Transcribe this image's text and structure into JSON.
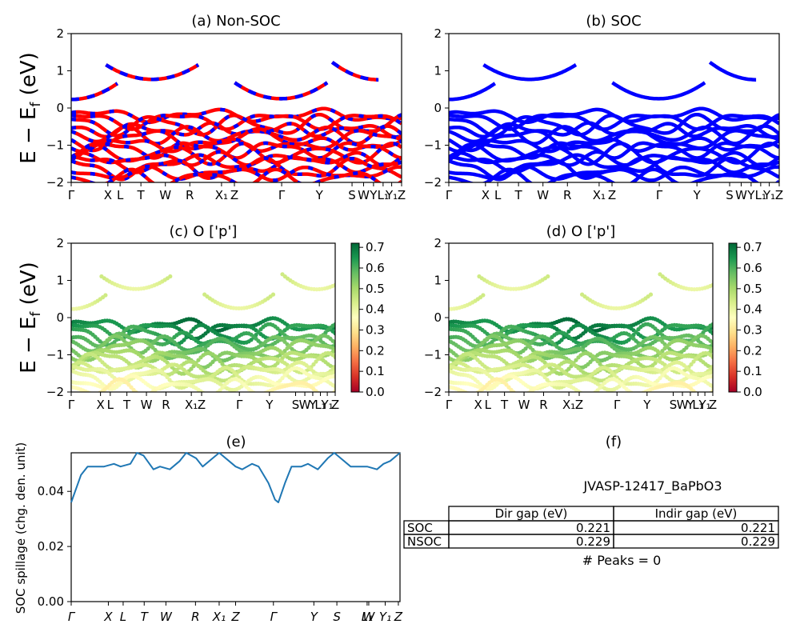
{
  "colors": {
    "nonsoc_a": "#ff0000",
    "nonsoc_b": "#0000ff",
    "soc": "#0000ff",
    "spillage": "#1f77b4",
    "colormap": [
      "#a50026",
      "#d73027",
      "#f46d43",
      "#fdae61",
      "#fee08b",
      "#ffffbf",
      "#d9ef8b",
      "#a6d96a",
      "#66bd63",
      "#1a9850",
      "#006837"
    ]
  },
  "panels": {
    "a": {
      "title": "(a) Non-SOC"
    },
    "b": {
      "title": "(b) SOC"
    },
    "c": {
      "title": "(c)  O ['p']"
    },
    "d": {
      "title": "(d) O ['p']"
    },
    "e": {
      "title": "(e)"
    },
    "f": {
      "title": "(f)"
    }
  },
  "band_ylabel": "E − E_f (eV)",
  "band_ylim": [
    -2,
    2
  ],
  "band_yticks": [
    "2",
    "1",
    "0",
    "−1",
    "−2"
  ],
  "colorbar_ticks": [
    "0.7",
    "0.6",
    "0.5",
    "0.4",
    "0.3",
    "0.2",
    "0.1",
    "0.0"
  ],
  "chart_data": [
    {
      "type": "line",
      "title": "(a) Non-SOC",
      "ylabel": "E − E_f (eV)",
      "ylim": [
        -2,
        2
      ],
      "xtick_labels": [
        "Γ",
        "X",
        "L",
        "T",
        "W",
        "R",
        "X1",
        "Z",
        "Γ",
        "Y",
        "S",
        "W",
        "Y",
        "L1",
        "Y1",
        "Z"
      ],
      "series": [
        {
          "name": "conduction band",
          "x": [
            0,
            0.06,
            0.1,
            0.18,
            0.2,
            0.25,
            0.3,
            0.38,
            0.4,
            0.45,
            0.58,
            0.62,
            0.66,
            0.7,
            0.84,
            0.88,
            0.93
          ],
          "y": [
            0.23,
            0.8,
            2.0,
            2.0,
            1.2,
            0.77,
            1.2,
            2.0,
            2.0,
            0.9,
            0.25,
            0.9,
            2.0,
            2.0,
            2.0,
            1.1,
            0.76
          ]
        },
        {
          "name": "valence band top",
          "x": [
            0,
            0.2,
            0.4,
            0.6,
            0.8,
            1.0
          ],
          "y": [
            -0.2,
            -0.35,
            -0.25,
            -0.15,
            -0.3,
            -0.45
          ]
        }
      ]
    },
    {
      "type": "line",
      "title": "(b) SOC",
      "ylim": [
        -2,
        2
      ],
      "xtick_labels": [
        "Γ",
        "X",
        "L",
        "T",
        "W",
        "R",
        "X1",
        "Z",
        "Γ",
        "Y",
        "S",
        "W",
        "Y",
        "L1",
        "Y1",
        "Z"
      ],
      "series": [
        {
          "name": "conduction band",
          "x": [
            0,
            0.06,
            0.1,
            0.2,
            0.25,
            0.3,
            0.45,
            0.58,
            0.7,
            0.88,
            0.93
          ],
          "y": [
            0.23,
            0.8,
            2.0,
            1.2,
            0.77,
            1.2,
            0.9,
            0.23,
            0.9,
            1.1,
            0.76
          ]
        },
        {
          "name": "valence band top",
          "x": [
            0,
            0.2,
            0.4,
            0.6,
            0.8,
            1.0
          ],
          "y": [
            -0.2,
            -0.35,
            -0.25,
            -0.15,
            -0.3,
            -0.45
          ]
        }
      ]
    },
    {
      "type": "scatter",
      "title": "(c)  O ['p']",
      "ylabel": "E − E_f (eV)",
      "ylim": [
        -2,
        2
      ],
      "colorbar": {
        "range": [
          0.0,
          0.72
        ],
        "ticks": [
          0.0,
          0.1,
          0.2,
          0.3,
          0.4,
          0.5,
          0.6,
          0.7
        ]
      },
      "xtick_labels": [
        "Γ",
        "X",
        "L",
        "T",
        "W",
        "R",
        "X1",
        "Z",
        "Γ",
        "Y",
        "S",
        "W",
        "Y",
        "L1",
        "Y1",
        "Z"
      ]
    },
    {
      "type": "scatter",
      "title": "(d) O ['p']",
      "ylim": [
        -2,
        2
      ],
      "colorbar": {
        "range": [
          0.0,
          0.72
        ],
        "ticks": [
          0.0,
          0.1,
          0.2,
          0.3,
          0.4,
          0.5,
          0.6,
          0.7
        ]
      },
      "xtick_labels": [
        "Γ",
        "X",
        "L",
        "T",
        "W",
        "R",
        "X1",
        "Z",
        "Γ",
        "Y",
        "S",
        "W",
        "Y",
        "L1",
        "Y1",
        "Z"
      ]
    },
    {
      "type": "line",
      "title": "(e)",
      "ylabel": "SOC spillage (chg. den. unit)",
      "ylim": [
        0,
        0.054
      ],
      "yticks": [
        0.0,
        0.02,
        0.04
      ],
      "xtick_labels": [
        "Γ",
        "X",
        "L",
        "T",
        "W",
        "R",
        "X1",
        "Z",
        "Γ",
        "Y",
        "S",
        "L1",
        "W",
        "Y1",
        "Z"
      ],
      "x": [
        0,
        0.03,
        0.05,
        0.08,
        0.1,
        0.13,
        0.15,
        0.18,
        0.2,
        0.22,
        0.25,
        0.27,
        0.3,
        0.33,
        0.35,
        0.38,
        0.4,
        0.43,
        0.45,
        0.48,
        0.5,
        0.52,
        0.55,
        0.57,
        0.6,
        0.62,
        0.63,
        0.65,
        0.67,
        0.7,
        0.72,
        0.75,
        0.78,
        0.8,
        0.82,
        0.85,
        0.87,
        0.9,
        0.93,
        0.95,
        0.97,
        1.0
      ],
      "y": [
        0.036,
        0.046,
        0.049,
        0.049,
        0.049,
        0.05,
        0.049,
        0.05,
        0.054,
        0.053,
        0.048,
        0.049,
        0.048,
        0.051,
        0.054,
        0.052,
        0.049,
        0.052,
        0.054,
        0.051,
        0.049,
        0.048,
        0.05,
        0.049,
        0.043,
        0.037,
        0.036,
        0.043,
        0.049,
        0.049,
        0.05,
        0.048,
        0.052,
        0.054,
        0.052,
        0.049,
        0.049,
        0.049,
        0.048,
        0.05,
        0.051,
        0.054
      ]
    },
    {
      "type": "table",
      "title": "(f)",
      "columns": [
        "Dir gap (eV)",
        "Indir gap (eV)"
      ],
      "rows": [
        {
          "label": "SOC",
          "values": [
            "0.221",
            "0.221"
          ]
        },
        {
          "label": "NSOC",
          "values": [
            "0.229",
            "0.229"
          ]
        }
      ]
    }
  ],
  "spillage_yticks": [
    "0.00",
    "0.02",
    "0.04"
  ],
  "spillage_ylabel": "SOC spillage (chg. den. unit)",
  "material": "JVASP-12417_BaPbO3",
  "peaks": "# Peaks = 0",
  "table": {
    "columns": [
      "Dir gap (eV)",
      "Indir gap (eV)"
    ],
    "rows": [
      {
        "label": "SOC",
        "values": [
          "0.221",
          "0.221"
        ]
      },
      {
        "label": "NSOC",
        "values": [
          "0.229",
          "0.229"
        ]
      }
    ]
  }
}
